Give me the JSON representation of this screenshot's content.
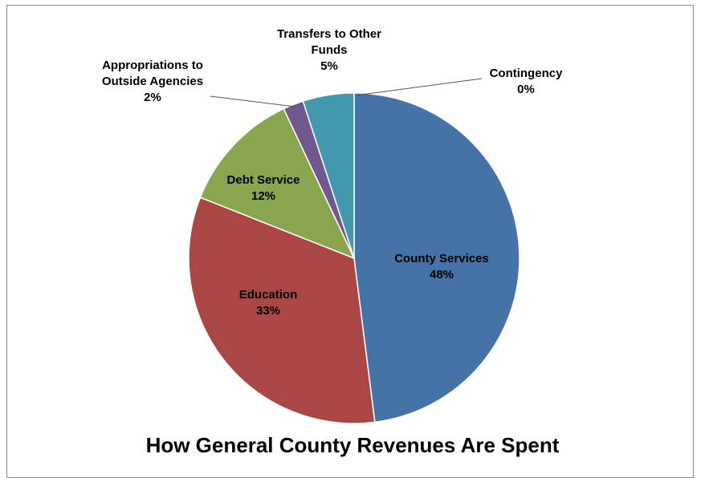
{
  "chart_data": {
    "type": "pie",
    "title": "How General County Revenues Are Spent",
    "categories": [
      "County Services",
      "Education",
      "Debt Service",
      "Appropriations to Outside Agencies",
      "Transfers to Other Funds",
      "Contingency"
    ],
    "values": [
      48,
      33,
      12,
      2,
      5,
      0
    ],
    "value_labels": [
      "48%",
      "33%",
      "12%",
      "2%",
      "5%",
      "0%"
    ],
    "label_lines": [
      [
        "County Services"
      ],
      [
        "Education"
      ],
      [
        "Debt Service"
      ],
      [
        "Appropriations to",
        "Outside Agencies"
      ],
      [
        "Transfers to Other",
        "Funds"
      ],
      [
        "Contingency"
      ]
    ],
    "colors": [
      "#4572a7",
      "#aa4643",
      "#89a54e",
      "#71588f",
      "#4198af",
      "#db843d"
    ],
    "legend": "none",
    "start_angle": "12 o'clock",
    "direction": "clockwise"
  }
}
